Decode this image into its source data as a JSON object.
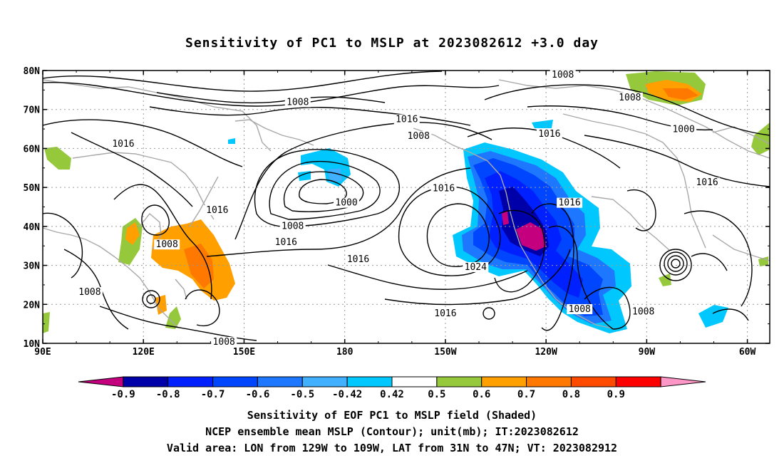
{
  "title": "Sensitivity of PC1 to MSLP at 2023082612 +3.0 day",
  "map": {
    "lat_labels": [
      "80N",
      "70N",
      "60N",
      "50N",
      "40N",
      "30N",
      "20N",
      "10N"
    ],
    "lon_labels": [
      "90E",
      "120E",
      "150E",
      "180",
      "150W",
      "120W",
      "90W",
      "60W"
    ],
    "contour_labels": [
      {
        "text": "1008",
        "lon": -115,
        "lat": 78.5
      },
      {
        "text": "1008",
        "lon": -95,
        "lat": 72.7
      },
      {
        "text": "1000",
        "lon": -79,
        "lat": 64.6
      },
      {
        "text": "1016",
        "lon": -72,
        "lat": 50.9
      },
      {
        "text": "1008",
        "lon": 166,
        "lat": 71.5
      },
      {
        "text": "1016",
        "lon": -161.5,
        "lat": 67.1
      },
      {
        "text": "1008",
        "lon": -158,
        "lat": 62.8
      },
      {
        "text": "1016",
        "lon": -119,
        "lat": 63.4
      },
      {
        "text": "1016",
        "lon": 114,
        "lat": 60.8
      },
      {
        "text": "1016",
        "lon": -150.5,
        "lat": 49.4
      },
      {
        "text": "1000",
        "lon": -179.5,
        "lat": 45.7
      },
      {
        "text": "1016",
        "lon": -113,
        "lat": 45.7
      },
      {
        "text": "1016",
        "lon": 142,
        "lat": 43.8
      },
      {
        "text": "1008",
        "lon": 164.5,
        "lat": 39.7
      },
      {
        "text": "1016",
        "lon": 162.5,
        "lat": 35.6
      },
      {
        "text": "1008",
        "lon": 127,
        "lat": 35.0
      },
      {
        "text": "1016",
        "lon": -176,
        "lat": 31.2
      },
      {
        "text": "1024",
        "lon": -141,
        "lat": 29.2
      },
      {
        "text": "1008",
        "lon": 104,
        "lat": 22.8
      },
      {
        "text": "1008",
        "lon": -110,
        "lat": 18.4
      },
      {
        "text": "1008",
        "lon": -91,
        "lat": 17.8
      },
      {
        "text": "1016",
        "lon": -150,
        "lat": 17.3
      },
      {
        "text": "1008",
        "lon": 144,
        "lat": 10.0
      }
    ]
  },
  "colorbar": {
    "colors": [
      "#c4007f",
      "#0000a8",
      "#0020ff",
      "#0046ff",
      "#1e78ff",
      "#40b0ff",
      "#00c8ff",
      "#ffffff",
      "#96c83c",
      "#ffa000",
      "#ff7800",
      "#ff4b00",
      "#ff0000",
      "#ff96c8"
    ],
    "labels": [
      "-0.9",
      "-0.8",
      "-0.7",
      "-0.6",
      "-0.5",
      "-0.42",
      "0.42",
      "0.5",
      "0.6",
      "0.7",
      "0.8",
      "0.9"
    ]
  },
  "footer": {
    "line1": "Sensitivity of EOF PC1 to MSLP field (Shaded)",
    "line2": "NCEP ensemble mean MSLP (Contour); unit(mb); IT:2023082612",
    "line3": "Valid area: LON from 129W to 109W, LAT from 31N to 47N; VT: 2023082912"
  }
}
